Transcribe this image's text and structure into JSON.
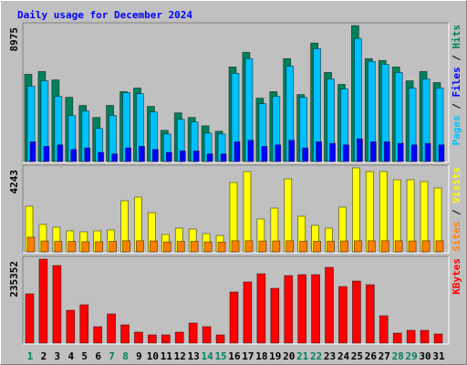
{
  "legend_separator": "/",
  "chart_data": [
    {
      "type": "bar",
      "title": "Daily usage for December 2024",
      "ylim": [
        0,
        8975
      ],
      "yticks": [
        8975
      ],
      "series": [
        {
          "name": "Pages",
          "color": "#00c0ff",
          "values": [
            4970,
            5330,
            4300,
            3030,
            3330,
            2180,
            3030,
            4550,
            4480,
            3270,
            1820,
            2790,
            2610,
            1880,
            1820,
            5820,
            6790,
            3820,
            4300,
            6300,
            4240,
            7450,
            5450,
            4790,
            8120,
            6610,
            6420,
            5880,
            4850,
            5450,
            4850
          ]
        },
        {
          "name": "Files",
          "color": "#0000ff",
          "values": [
            1300,
            1000,
            1100,
            800,
            900,
            600,
            500,
            900,
            1000,
            800,
            600,
            700,
            700,
            500,
            500,
            1300,
            1400,
            1000,
            1100,
            1400,
            900,
            1300,
            1200,
            1100,
            1500,
            1300,
            1300,
            1200,
            1100,
            1200,
            1100
          ]
        },
        {
          "name": "Hits",
          "color": "#00805c",
          "values": [
            5760,
            5940,
            5390,
            4240,
            3700,
            2910,
            3700,
            4610,
            4850,
            3640,
            2060,
            3210,
            2910,
            2360,
            2000,
            6240,
            7210,
            4180,
            4610,
            6790,
            4420,
            7820,
            5880,
            5090,
            8975,
            6790,
            6670,
            6240,
            5330,
            5940,
            5210
          ]
        }
      ]
    },
    {
      "type": "bar",
      "ylim": [
        0,
        4243
      ],
      "yticks": [
        4243
      ],
      "series": [
        {
          "name": "Sites",
          "color": "#ff8000",
          "values": [
            740,
            550,
            530,
            530,
            510,
            510,
            530,
            560,
            560,
            550,
            500,
            530,
            530,
            500,
            490,
            560,
            560,
            550,
            550,
            560,
            540,
            530,
            540,
            550,
            560,
            560,
            560,
            560,
            550,
            560,
            560
          ]
        },
        {
          "name": "Visits",
          "color": "#ffff00",
          "values": [
            2305,
            1383,
            1245,
            1060,
            1014,
            1060,
            1106,
            2582,
            2766,
            1982,
            876,
            1199,
            1153,
            922,
            830,
            3504,
            4057,
            1660,
            2213,
            3688,
            1798,
            1337,
            1199,
            2259,
            4243,
            4057,
            4057,
            3642,
            3642,
            3550,
            3227
          ]
        }
      ]
    },
    {
      "type": "bar",
      "ylim": [
        0,
        235352
      ],
      "yticks": [
        235352
      ],
      "categories": [
        "1",
        "2",
        "3",
        "4",
        "5",
        "6",
        "7",
        "8",
        "9",
        "10",
        "11",
        "12",
        "13",
        "14",
        "15",
        "16",
        "17",
        "18",
        "19",
        "20",
        "21",
        "22",
        "23",
        "24",
        "25",
        "26",
        "27",
        "28",
        "29",
        "30",
        "31"
      ],
      "category_colors": [
        "#00805c",
        "#000000",
        "#000000",
        "#000000",
        "#000000",
        "#000000",
        "#00805c",
        "#00805c",
        "#000000",
        "#000000",
        "#000000",
        "#000000",
        "#000000",
        "#00805c",
        "#00805c",
        "#000000",
        "#000000",
        "#000000",
        "#000000",
        "#000000",
        "#00805c",
        "#00805c",
        "#000000",
        "#000000",
        "#000000",
        "#000000",
        "#000000",
        "#00805c",
        "#00805c",
        "#000000",
        "#000000"
      ],
      "series": [
        {
          "name": "KBytes",
          "color": "#ff0000",
          "values": [
            138130,
            235352,
            217430,
            92090,
            107440,
            46040,
            81860,
            51160,
            30700,
            23020,
            23020,
            30700,
            56280,
            46040,
            23020,
            143250,
            171390,
            194410,
            153480,
            189290,
            191850,
            191850,
            212310,
            158600,
            173940,
            163710,
            76740,
            28140,
            35810,
            35810,
            25580
          ]
        }
      ]
    }
  ]
}
